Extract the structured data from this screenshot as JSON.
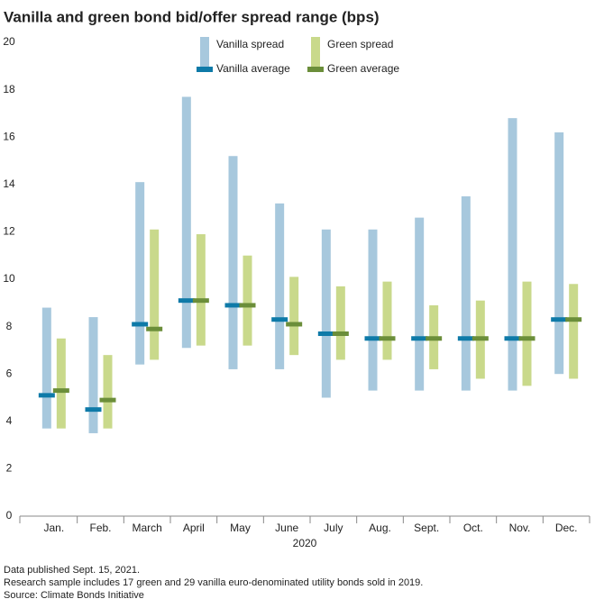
{
  "chart_data": {
    "type": "range-bar",
    "title": "Vanilla and green bond bid/offer spread range (bps)",
    "x_label": "2020",
    "categories": [
      "Jan.",
      "Feb.",
      "March",
      "April",
      "May",
      "June",
      "July",
      "Aug.",
      "Sept.",
      "Oct.",
      "Nov.",
      "Dec."
    ],
    "series": [
      {
        "name": "Vanilla spread",
        "color": "#a7c8dd",
        "low": [
          3.7,
          3.5,
          6.4,
          7.1,
          6.2,
          6.2,
          5.0,
          5.3,
          5.3,
          5.3,
          5.3,
          6.0
        ],
        "high": [
          8.8,
          8.4,
          14.1,
          17.7,
          15.2,
          13.2,
          12.1,
          12.1,
          12.6,
          13.5,
          16.8,
          16.2
        ]
      },
      {
        "name": "Green spread",
        "color": "#c9d98b",
        "low": [
          3.7,
          3.7,
          6.6,
          7.2,
          7.2,
          6.8,
          6.6,
          6.6,
          6.2,
          5.8,
          5.5,
          5.8
        ],
        "high": [
          7.5,
          6.8,
          12.1,
          11.9,
          11.0,
          10.1,
          9.7,
          9.9,
          8.9,
          9.1,
          9.9,
          9.8
        ]
      },
      {
        "name": "Vanilla average",
        "color": "#0e7aa8",
        "values": [
          5.1,
          4.5,
          8.1,
          9.1,
          8.9,
          8.3,
          7.7,
          7.5,
          7.5,
          7.5,
          7.5,
          8.3
        ]
      },
      {
        "name": "Green average",
        "color": "#6b8e3a",
        "values": [
          5.3,
          4.9,
          7.9,
          9.1,
          8.9,
          8.1,
          7.7,
          7.5,
          7.5,
          7.5,
          7.5,
          8.3
        ]
      }
    ],
    "ylim": [
      0,
      20
    ],
    "yticks": [
      0,
      2,
      4,
      6,
      8,
      10,
      12,
      14,
      16,
      18,
      20
    ],
    "notes": [
      "Data published Sept. 15, 2021.",
      "Research sample includes 17 green and 29 vanilla euro-denominated utility bonds sold in 2019.",
      "Source: Climate Bonds Initiative"
    ]
  }
}
